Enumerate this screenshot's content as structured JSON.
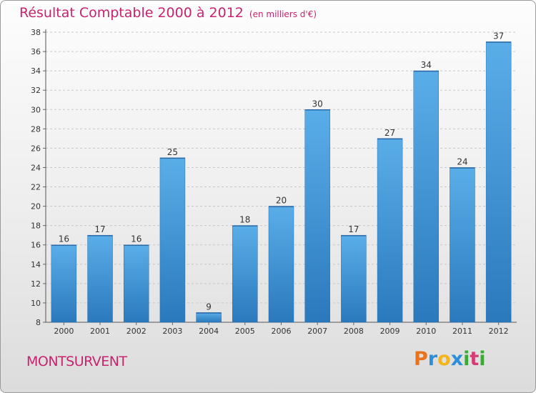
{
  "header": {
    "title": "Résultat Comptable 2000 à 2012",
    "unit": "(en milliers d'€)"
  },
  "commune": "MONTSURVENT",
  "logo": {
    "letters": [
      "P",
      "r",
      "o",
      "x",
      "i",
      "t",
      "i"
    ],
    "colors": [
      "#e8731c",
      "#2d8fd8",
      "#f2b51b",
      "#2d8fd8",
      "#3aa935",
      "#d63c74",
      "#3aa935"
    ]
  },
  "chart_data": {
    "type": "bar",
    "title": "Résultat Comptable 2000 à 2012",
    "xlabel": "",
    "ylabel": "",
    "categories": [
      "2000",
      "2001",
      "2002",
      "2003",
      "2004",
      "2005",
      "2006",
      "2007",
      "2008",
      "2009",
      "2010",
      "2011",
      "2012"
    ],
    "values": [
      16,
      17,
      16,
      25,
      9,
      18,
      20,
      30,
      17,
      27,
      34,
      24,
      37
    ],
    "ylim": [
      8,
      38
    ],
    "yticks": [
      8,
      10,
      12,
      14,
      16,
      18,
      20,
      22,
      24,
      26,
      28,
      30,
      32,
      34,
      36,
      38
    ],
    "bar_color": "#3d93d7",
    "grid": true
  }
}
